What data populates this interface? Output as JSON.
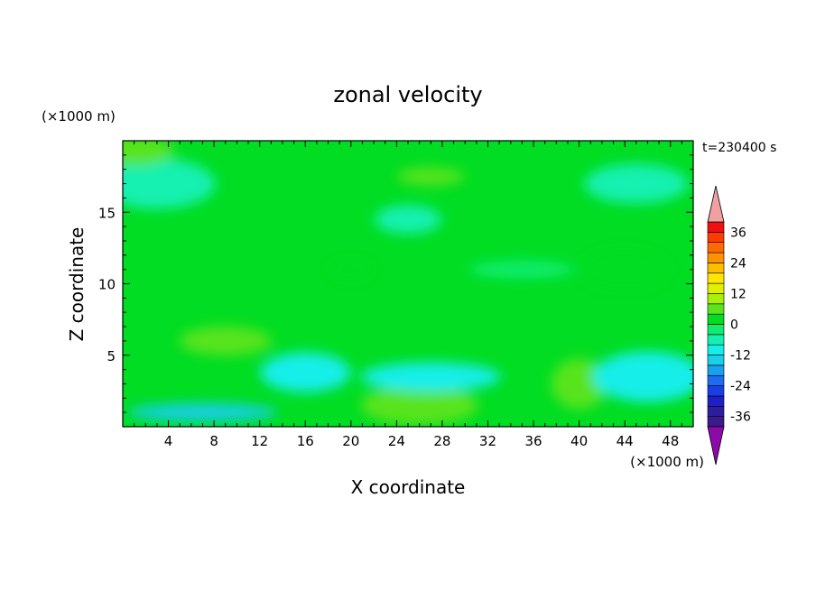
{
  "chart_data": {
    "type": "heatmap",
    "title": "zonal velocity",
    "xlabel": "X coordinate",
    "ylabel": "Z coordinate",
    "x_unit": "(×1000 m)",
    "y_unit": "(×1000 m)",
    "time_label": "t=230400 s",
    "xlim": [
      0,
      50
    ],
    "ylim": [
      0,
      20
    ],
    "x_ticks": [
      4,
      8,
      12,
      16,
      20,
      24,
      28,
      32,
      36,
      40,
      44,
      48
    ],
    "y_ticks": [
      5,
      10,
      15
    ],
    "colorbar": {
      "levels": [
        -40,
        -36,
        -32,
        -28,
        -24,
        -20,
        -16,
        -12,
        -8,
        -4,
        0,
        4,
        8,
        12,
        16,
        20,
        24,
        28,
        32,
        36,
        40
      ],
      "colors": [
        "#3a1a8c",
        "#2b1fa0",
        "#1f1fc8",
        "#1a3ee6",
        "#1e6cf0",
        "#1aa0f0",
        "#19cfe9",
        "#17eeea",
        "#14f0b0",
        "#10ec6e",
        "#00dd22",
        "#59e41e",
        "#a8f00a",
        "#e0f000",
        "#ffe600",
        "#ffbd00",
        "#ff9200",
        "#ff6a00",
        "#ff3c00",
        "#f01010"
      ],
      "under_color": "#8c0aa8",
      "over_color": "#f0a0a0",
      "tick_labels": [
        "36",
        "24",
        "12",
        "0",
        "-12",
        "-24",
        "-36"
      ]
    },
    "field_description_levels": {
      "background": 0,
      "features": [
        {
          "x": 27,
          "z": 17.5,
          "value": 6
        },
        {
          "x": 9,
          "z": 6,
          "value": 6
        },
        {
          "x": 26,
          "z": 1.5,
          "value": 6
        },
        {
          "x": 40,
          "z": 3,
          "value": 4
        },
        {
          "x": 7,
          "z": 1,
          "value": -16
        },
        {
          "x": 27,
          "z": 3.5,
          "value": -10
        },
        {
          "x": 16,
          "z": 3.8,
          "value": -10
        },
        {
          "x": 46,
          "z": 3.5,
          "value": -9
        },
        {
          "x": 35,
          "z": 11,
          "value": -4
        },
        {
          "x": 25,
          "z": 14.5,
          "value": -6
        },
        {
          "x": 45,
          "z": 17,
          "value": -8
        },
        {
          "x": 3,
          "z": 17,
          "value": -6
        },
        {
          "x": 20,
          "z": 11,
          "value": 2
        },
        {
          "x": 1,
          "z": 19.3,
          "value": 4
        },
        {
          "x": 44,
          "z": 11,
          "value": 1
        }
      ]
    }
  }
}
